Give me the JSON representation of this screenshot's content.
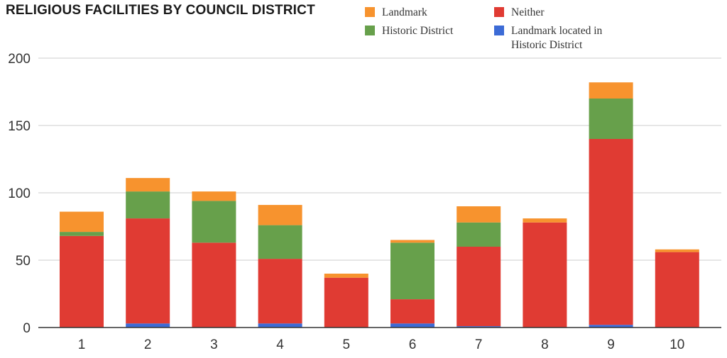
{
  "chart_data": {
    "type": "bar",
    "stacked": true,
    "title": "RELIGIOUS FACILITIES BY COUNCIL DISTRICT",
    "xlabel": "",
    "ylabel": "",
    "categories": [
      "1",
      "2",
      "3",
      "4",
      "5",
      "6",
      "7",
      "8",
      "9",
      "10"
    ],
    "ylim": [
      0,
      200
    ],
    "yticks": [
      "0",
      "50",
      "100",
      "150",
      "200"
    ],
    "grid": true,
    "legend_position": "top-right",
    "series": [
      {
        "name": "Landmark located in Historic District",
        "color": "#3c6bd6",
        "values": [
          0,
          3,
          0,
          3,
          0,
          3,
          1,
          0,
          2,
          0
        ]
      },
      {
        "name": "Neither",
        "color": "#e03b33",
        "values": [
          68,
          78,
          63,
          48,
          37,
          18,
          59,
          78,
          138,
          56
        ]
      },
      {
        "name": "Historic District",
        "color": "#67a04b",
        "values": [
          3,
          20,
          31,
          25,
          0,
          42,
          18,
          0,
          30,
          0
        ]
      },
      {
        "name": "Landmark",
        "color": "#f7932e",
        "values": [
          15,
          10,
          7,
          15,
          3,
          2,
          12,
          3,
          12,
          2
        ]
      }
    ],
    "legend_order": [
      3,
      1,
      2,
      0
    ]
  }
}
